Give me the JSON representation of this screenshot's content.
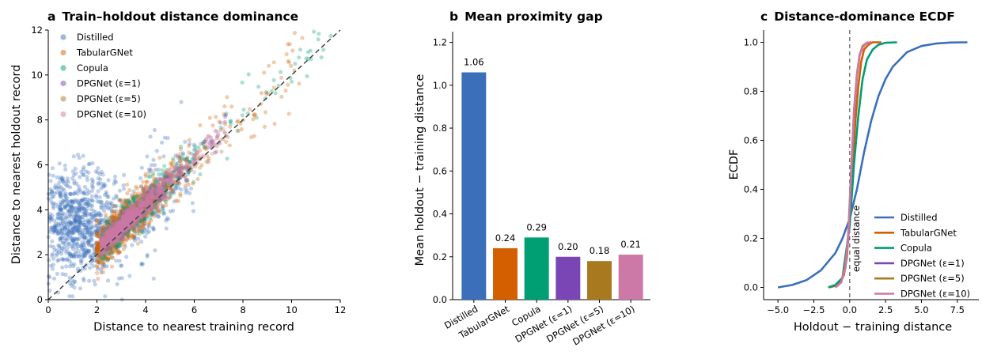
{
  "colors": {
    "Distilled": "#3b6fba",
    "TabularGNet": "#d45f00",
    "Copula": "#009e73",
    "DPGNet (ε=1)": "#7a46b5",
    "DPGNet (ε=5)": "#a8791f",
    "DPGNet (ε=10)": "#cc79a7"
  },
  "chart_data": [
    {
      "id": "a",
      "type": "scatter",
      "panel_label": "a",
      "title": "Train–holdout distance dominance",
      "xlabel": "Distance to nearest training record",
      "ylabel": "Distance to nearest holdout record",
      "xlim": [
        0,
        12
      ],
      "ylim": [
        0,
        12
      ],
      "xticks": [
        "0",
        "2",
        "4",
        "6",
        "8",
        "10",
        "12"
      ],
      "yticks": [
        "0",
        "2",
        "4",
        "6",
        "8",
        "10",
        "12"
      ],
      "reference_line": {
        "style": "dashed",
        "from": [
          0,
          0
        ],
        "to": [
          12,
          12
        ]
      },
      "legend_position": "top-left",
      "series": [
        {
          "name": "Distilled",
          "x_center": 1.2,
          "y_center": 3.4,
          "x_spread": 0.75,
          "y_spread": 1.2,
          "approx_points": 950
        },
        {
          "name": "TabularGNet",
          "x_center": 4.5,
          "y_center": 4.8,
          "x_range": [
            2.0,
            10.5
          ],
          "diag_spread": 0.45,
          "approx_points": 900
        },
        {
          "name": "Copula",
          "x_center": 4.5,
          "y_center": 5.0,
          "x_range": [
            2.2,
            11.7
          ],
          "diag_spread": 0.35,
          "approx_points": 600
        },
        {
          "name": "DPGNet (ε=1)",
          "x_center": 4.3,
          "y_center": 4.5,
          "x_range": [
            2.2,
            7.5
          ],
          "diag_spread": 0.22,
          "approx_points": 400
        },
        {
          "name": "DPGNet (ε=5)",
          "x_center": 4.3,
          "y_center": 4.5,
          "x_range": [
            2.2,
            7.5
          ],
          "diag_spread": 0.22,
          "approx_points": 400
        },
        {
          "name": "DPGNet (ε=10)",
          "x_center": 4.3,
          "y_center": 4.5,
          "x_range": [
            2.2,
            7.3
          ],
          "diag_spread": 0.22,
          "approx_points": 900
        }
      ]
    },
    {
      "id": "b",
      "type": "bar",
      "panel_label": "b",
      "title": "Mean proximity gap",
      "xlabel": "",
      "ylabel": "Mean holdout − training distance",
      "ylim": [
        0,
        1.25
      ],
      "yticks": [
        "0.0",
        "0.2",
        "0.4",
        "0.6",
        "0.8",
        "1.0",
        "1.2"
      ],
      "categories": [
        "Distilled",
        "TabularGNet",
        "Copula",
        "DPGNet (ε=1)",
        "DPGNet (ε=5)",
        "DPGNet (ε=10)"
      ],
      "values": [
        1.06,
        0.24,
        0.29,
        0.2,
        0.18,
        0.21
      ],
      "value_labels": [
        "1.06",
        "0.24",
        "0.29",
        "0.20",
        "0.18",
        "0.21"
      ]
    },
    {
      "id": "c",
      "type": "line",
      "panel_label": "c",
      "title": "Distance-dominance ECDF",
      "xlabel": "Holdout − training distance",
      "ylabel": "ECDF",
      "xlim": [
        -6,
        9
      ],
      "ylim": [
        -0.05,
        1.05
      ],
      "xticks": [
        "−5.0",
        "−2.5",
        "0.0",
        "2.5",
        "5.0",
        "7.5"
      ],
      "yticks": [
        "0.0",
        "0.2",
        "0.4",
        "0.6",
        "0.8",
        "1.0"
      ],
      "reference_line": {
        "x": 0,
        "style": "dashed",
        "label": "equal distance"
      },
      "legend_position": "lower-right",
      "series": [
        {
          "name": "Distilled",
          "x": [
            -5.0,
            -4.0,
            -3.0,
            -2.0,
            -1.0,
            -0.5,
            0.0,
            0.5,
            1.0,
            1.5,
            2.0,
            2.5,
            3.0,
            4.0,
            5.0,
            6.0,
            7.0,
            8.2
          ],
          "y": [
            0.0,
            0.01,
            0.03,
            0.07,
            0.14,
            0.2,
            0.28,
            0.4,
            0.55,
            0.68,
            0.78,
            0.85,
            0.9,
            0.96,
            0.985,
            0.995,
            0.999,
            1.0
          ]
        },
        {
          "name": "TabularGNet",
          "x": [
            -1.4,
            -0.8,
            -0.4,
            -0.2,
            0.0,
            0.2,
            0.4,
            0.6,
            0.8,
            1.0,
            1.3,
            1.6,
            2.2
          ],
          "y": [
            0.0,
            0.01,
            0.05,
            0.12,
            0.3,
            0.5,
            0.68,
            0.82,
            0.92,
            0.97,
            0.99,
            1.0,
            1.0
          ]
        },
        {
          "name": "Copula",
          "x": [
            -1.5,
            -1.0,
            -0.5,
            0.0,
            0.3,
            0.6,
            0.9,
            1.2,
            1.6,
            2.0,
            2.5,
            3.3
          ],
          "y": [
            0.0,
            0.01,
            0.04,
            0.25,
            0.5,
            0.7,
            0.85,
            0.93,
            0.97,
            0.99,
            0.998,
            1.0
          ]
        },
        {
          "name": "DPGNet (ε=1)",
          "x": [
            -1.0,
            -0.6,
            -0.3,
            -0.1,
            0.1,
            0.3,
            0.5,
            0.7,
            0.9,
            1.2,
            1.5
          ],
          "y": [
            0.0,
            0.02,
            0.08,
            0.2,
            0.45,
            0.7,
            0.86,
            0.95,
            0.98,
            0.998,
            1.0
          ]
        },
        {
          "name": "DPGNet (ε=5)",
          "x": [
            -1.0,
            -0.6,
            -0.3,
            -0.1,
            0.1,
            0.3,
            0.5,
            0.7,
            0.9,
            1.2,
            1.5
          ],
          "y": [
            0.0,
            0.02,
            0.09,
            0.22,
            0.47,
            0.72,
            0.87,
            0.95,
            0.985,
            0.998,
            1.0
          ]
        },
        {
          "name": "DPGNet (ε=10)",
          "x": [
            -1.0,
            -0.6,
            -0.3,
            -0.1,
            0.1,
            0.3,
            0.5,
            0.7,
            0.9,
            1.2,
            1.5
          ],
          "y": [
            0.0,
            0.02,
            0.08,
            0.21,
            0.46,
            0.71,
            0.86,
            0.95,
            0.98,
            0.998,
            1.0
          ]
        }
      ]
    }
  ]
}
